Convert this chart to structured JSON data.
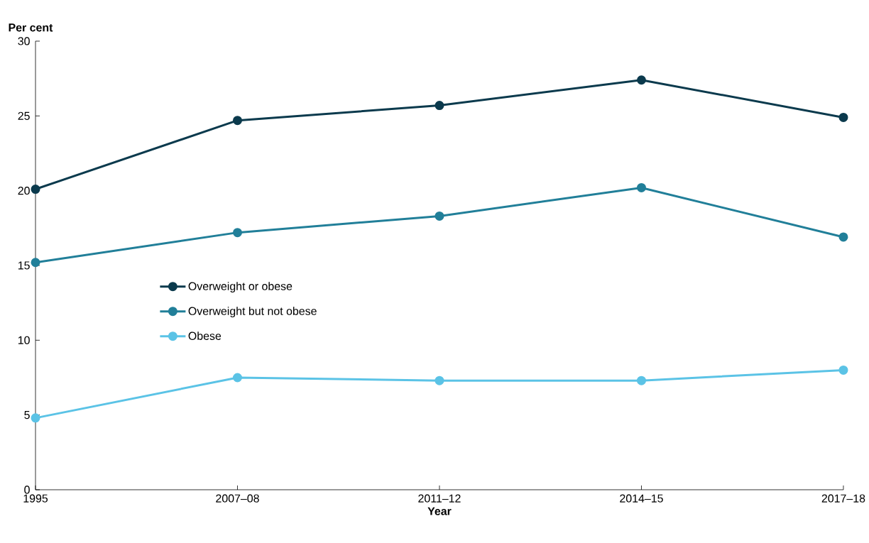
{
  "chart_data": {
    "type": "line",
    "ylabel": "Per cent",
    "xlabel": "Year",
    "categories": [
      "1995",
      "2007–08",
      "2011–12",
      "2014–15",
      "2017–18"
    ],
    "ylim": [
      0,
      30
    ],
    "yticks": [
      0,
      5,
      10,
      15,
      20,
      25,
      30
    ],
    "series": [
      {
        "name": "Overweight or obese",
        "color": "#0b3a4d",
        "values": [
          20.1,
          24.7,
          25.7,
          27.4,
          24.9
        ]
      },
      {
        "name": "Overweight but not obese",
        "color": "#217f99",
        "values": [
          15.2,
          17.2,
          18.3,
          20.2,
          16.9
        ]
      },
      {
        "name": "Obese",
        "color": "#5bc3e6",
        "values": [
          4.8,
          7.5,
          7.3,
          7.3,
          8.0
        ]
      }
    ],
    "marker": "circle",
    "line_style": "solid",
    "legend": "left",
    "grid": false
  }
}
